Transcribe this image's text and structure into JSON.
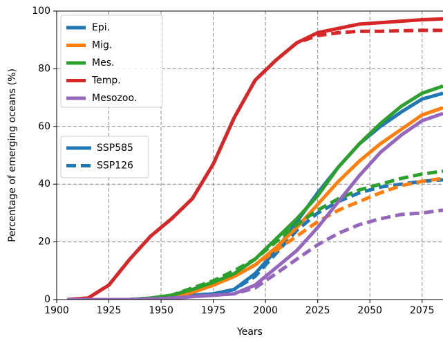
{
  "chart_data": {
    "type": "line",
    "xlabel": "Years",
    "ylabel": "Percentage of emerging oceans (%)",
    "x": [
      1905,
      1915,
      1925,
      1935,
      1945,
      1955,
      1965,
      1975,
      1985,
      1995,
      2005,
      2015,
      2025,
      2035,
      2045,
      2055,
      2065,
      2075,
      2085
    ],
    "xlim": [
      1900,
      2085
    ],
    "xticks": [
      1900,
      1925,
      1950,
      1975,
      2000,
      2025,
      2050,
      2075
    ],
    "ylim": [
      0,
      100
    ],
    "yticks": [
      0,
      20,
      40,
      60,
      80,
      100
    ],
    "grid": true,
    "legend": "upper left",
    "scenarios": [
      {
        "name": "SSP585",
        "linestyle": "solid"
      },
      {
        "name": "SSP126",
        "linestyle": "dashed"
      }
    ],
    "series": [
      {
        "name": "Epi.",
        "color": "#1f77b4",
        "values": [
          [
            0,
            0,
            0,
            0,
            0.3,
            0.8,
            1.5,
            2,
            3.5,
            9,
            17,
            27,
            37,
            46,
            54,
            60,
            65,
            69.5,
            71.5
          ],
          [
            0,
            0,
            0,
            0,
            0.3,
            0.8,
            1.5,
            2,
            3.5,
            8,
            16,
            24,
            30,
            34,
            37,
            39,
            40,
            41,
            41.5
          ]
        ]
      },
      {
        "name": "Mig.",
        "color": "#ff7f0e",
        "values": [
          [
            0,
            0,
            0,
            0,
            0.3,
            0.8,
            2.5,
            5,
            8,
            12,
            18,
            25,
            33,
            41,
            48,
            54,
            59,
            64,
            66.5
          ],
          [
            0,
            0,
            0,
            0,
            0.3,
            0.8,
            2.5,
            5,
            8,
            12,
            17,
            22,
            27,
            31,
            34,
            37,
            39.5,
            41,
            42
          ]
        ]
      },
      {
        "name": "Mes.",
        "color": "#2ca02c",
        "values": [
          [
            0,
            0,
            0,
            0,
            0.5,
            1.5,
            3.5,
            6,
            9,
            14,
            21,
            28,
            36,
            46,
            54,
            61,
            67,
            71.5,
            74
          ],
          [
            0,
            0,
            0,
            0,
            0.5,
            1.5,
            4,
            6.5,
            10,
            14,
            20,
            26,
            31,
            35,
            38,
            40,
            42,
            43.5,
            44.5
          ]
        ]
      },
      {
        "name": "Temp.",
        "color": "#d62728",
        "values": [
          [
            0,
            0.5,
            5,
            14,
            22,
            28,
            35,
            47,
            63,
            76,
            83,
            89,
            92.5,
            94,
            95.5,
            96,
            96.5,
            97,
            97.3
          ],
          [
            0,
            0.5,
            5,
            14,
            22,
            28,
            35,
            47,
            63,
            76,
            83,
            89,
            91.5,
            92.5,
            93,
            93,
            93.2,
            93.3,
            93.3
          ]
        ]
      },
      {
        "name": "Mesozoo.",
        "color": "#9467bd",
        "values": [
          [
            0,
            0,
            0,
            0,
            0.2,
            0.5,
            1,
            1.5,
            2,
            5,
            11,
            17,
            25,
            34,
            43,
            51,
            57,
            62,
            64.5
          ],
          [
            0,
            0,
            0,
            0,
            0.2,
            0.5,
            1,
            1.5,
            2,
            4,
            9,
            14,
            19,
            23,
            26,
            28,
            29.5,
            30,
            31
          ]
        ]
      }
    ]
  }
}
